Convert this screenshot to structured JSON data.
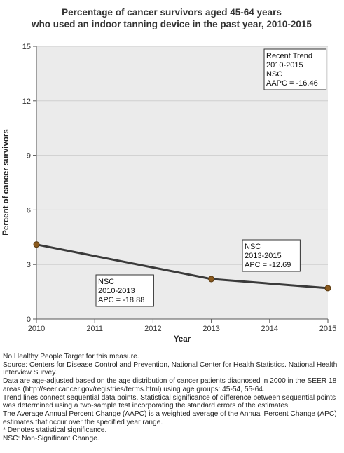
{
  "chart_data": {
    "type": "line",
    "title": "Percentage of cancer survivors aged 45-64 years",
    "subtitle": "who used an indoor tanning device in the past year, 2010-2015",
    "xlabel": "Year",
    "ylabel": "Percent of cancer survivors",
    "x_ticks": [
      "2010",
      "2011",
      "2012",
      "2013",
      "2014",
      "2015"
    ],
    "y_ticks": [
      "0",
      "3",
      "6",
      "9",
      "12",
      "15"
    ],
    "xlim": [
      2010,
      2015
    ],
    "ylim": [
      0,
      15
    ],
    "grid": true,
    "series": [
      {
        "x": [
          2010,
          2013,
          2015
        ],
        "values": [
          4.1,
          2.2,
          1.7
        ]
      }
    ],
    "colors": {
      "line": "#3a3a3a",
      "point": "#8b5a1e",
      "grid": "#cfcfcf",
      "plot_bg": "#ebebeb"
    },
    "annotations": [
      {
        "id": "recent-trend",
        "lines": [
          "Recent Trend",
          "2010-2015",
          "NSC",
          "AAPC = -16.46"
        ]
      },
      {
        "id": "segment-2010-2013",
        "lines": [
          "NSC",
          "2010-2013",
          "APC = -18.88"
        ]
      },
      {
        "id": "segment-2013-2015",
        "lines": [
          "NSC",
          "2013-2015",
          "APC = -12.69"
        ]
      }
    ]
  },
  "footnotes": [
    "No Healthy People Target for this measure.",
    "Source: Centers for Disease Control and Prevention, National Center for Health Statistics. National Health Interview Survey.",
    "Data are age-adjusted based on the age distribution of cancer patients diagnosed in 2000 in the SEER 18 areas (http://seer.cancer.gov/registries/terms.html) using age groups: 45-54, 55-64.",
    "Trend lines connect sequential data points. Statistical significance of difference between sequential points was determined using a two-sample test incorporating the standard errors of the estimates.",
    "The Average Annual Percent Change (AAPC) is a weighted average of the Annual Percent Change (APC) estimates that occur over the specified year range.",
    "* Denotes statistical significance.",
    "NSC: Non-Significant Change."
  ]
}
